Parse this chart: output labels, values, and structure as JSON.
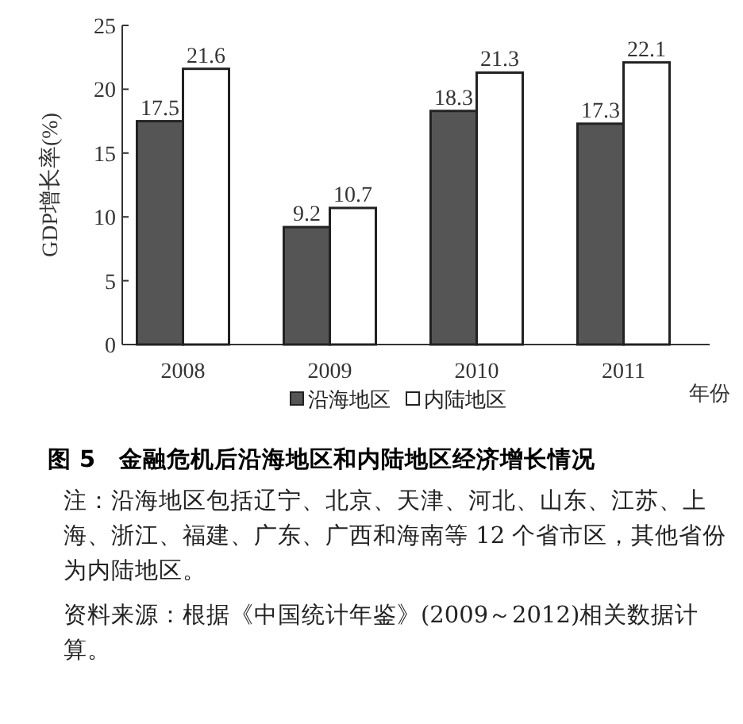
{
  "chart_data": {
    "type": "bar",
    "title": "图 5　金融危机后沿海地区和内陆地区经济增长情况",
    "xlabel": "年份",
    "ylabel": "GDP增长率(%)",
    "categories": [
      "2008",
      "2009",
      "2010",
      "2011"
    ],
    "series": [
      {
        "name": "沿海地区",
        "color": "#555555",
        "values": [
          17.5,
          9.2,
          18.3,
          17.3
        ]
      },
      {
        "name": "内陆地区",
        "color": "#ffffff",
        "values": [
          21.6,
          10.7,
          21.3,
          22.1
        ]
      }
    ],
    "ylim": [
      0,
      25
    ],
    "yticks": [
      0,
      5,
      10,
      15,
      20,
      25
    ],
    "data_labels": true,
    "legend": "bottom",
    "annotations": [
      "注：沿海地区包括辽宁、北京、天津、河北、山东、江苏、上海、浙江、福建、广东、广西和海南等 12 个省市区，其他省份为内陆地区。",
      "资料来源：根据《中国统计年鉴》(2009～2012)相关数据计算。"
    ]
  }
}
